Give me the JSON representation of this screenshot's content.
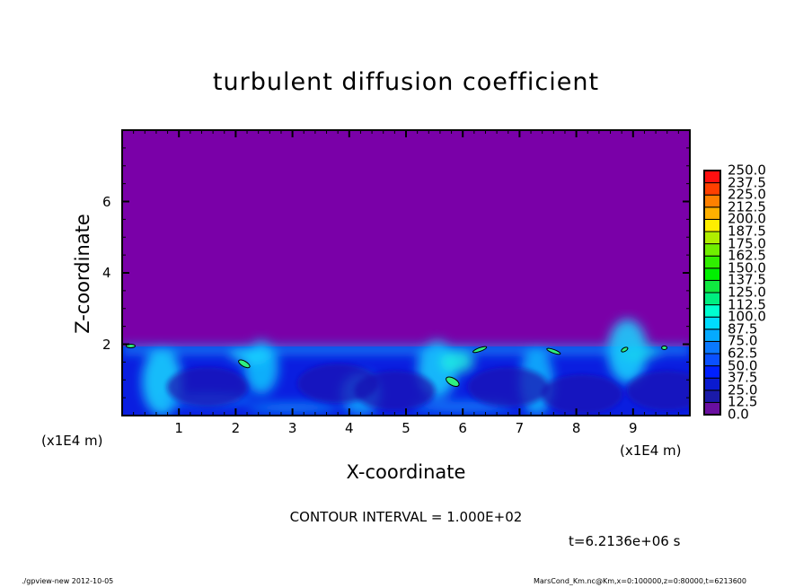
{
  "chart_data": {
    "type": "heatmap",
    "title": "turbulent diffusion coefficient",
    "xlabel": "X-coordinate",
    "ylabel": "Z-coordinate",
    "x_unit": "(x1E4 m)",
    "xlim": [
      0,
      10
    ],
    "ylim": [
      0,
      8
    ],
    "x_ticks": [
      "1",
      "2",
      "3",
      "4",
      "5",
      "6",
      "7",
      "8",
      "9"
    ],
    "y_ticks": [
      "2",
      "4",
      "6"
    ],
    "colorbar": {
      "levels": [
        "0.0",
        "12.5",
        "25.0",
        "37.5",
        "50.0",
        "62.5",
        "75.0",
        "87.5",
        "100.0",
        "112.5",
        "125.0",
        "137.5",
        "150.0",
        "162.5",
        "175.0",
        "187.5",
        "200.0",
        "212.5",
        "225.0",
        "237.5",
        "250.0"
      ],
      "colors": [
        "#6a0fa0",
        "#1a1aa8",
        "#0a1ad0",
        "#0020ff",
        "#0a50ff",
        "#0a78ff",
        "#05aaff",
        "#00dcff",
        "#00ffd0",
        "#00ee80",
        "#10e840",
        "#00f000",
        "#30ee00",
        "#70ee00",
        "#b0ee00",
        "#ffee00",
        "#ffb000",
        "#ff8000",
        "#ff4000",
        "#ff1010",
        "#ff6060"
      ]
    },
    "annotation_contour": "CONTOUR INTERVAL = 1.000E+02",
    "time": "t=6.2136e+06 s"
  },
  "footer": {
    "left": "./gpview-new   2012-10-05",
    "right": "MarsCond_Km.nc@Km,x=0:100000,z=0:80000,t=6213600"
  }
}
